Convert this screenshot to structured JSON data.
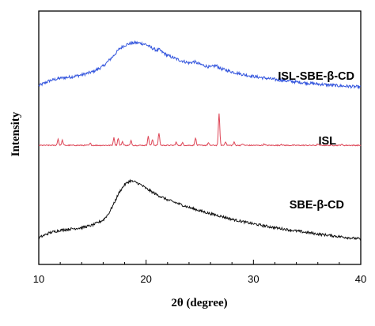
{
  "chart_data": {
    "type": "line",
    "title": "",
    "xlabel": "2θ (degree)",
    "ylabel": "Intensity",
    "xlim": [
      10,
      40
    ],
    "x_ticks": [
      "10",
      "20",
      "30",
      "40"
    ],
    "y_ticks": [],
    "grid": false,
    "legend": "inline labels at right of each trace",
    "series": [
      {
        "name": "ISL-SBE-β-CD",
        "color": "#3355dd",
        "x": [
          10,
          11,
          12,
          13,
          14,
          15,
          16,
          17,
          17.5,
          18,
          18.5,
          19,
          19.5,
          20,
          20.5,
          21,
          21.2,
          21.5,
          22,
          23,
          24,
          24.5,
          25,
          26,
          26.5,
          27,
          28,
          29,
          30,
          32,
          34,
          36,
          38,
          40
        ],
        "y": [
          0.705,
          0.725,
          0.735,
          0.74,
          0.748,
          0.76,
          0.782,
          0.825,
          0.85,
          0.865,
          0.872,
          0.875,
          0.873,
          0.868,
          0.855,
          0.845,
          0.848,
          0.838,
          0.825,
          0.808,
          0.795,
          0.8,
          0.79,
          0.778,
          0.785,
          0.772,
          0.76,
          0.75,
          0.742,
          0.73,
          0.72,
          0.712,
          0.705,
          0.7
        ]
      },
      {
        "name": "ISL",
        "color": "#dd4455",
        "baseline": 0.47,
        "peaks": [
          {
            "x": 11.8,
            "h": 0.025
          },
          {
            "x": 12.2,
            "h": 0.02
          },
          {
            "x": 14.8,
            "h": 0.008
          },
          {
            "x": 17.0,
            "h": 0.03
          },
          {
            "x": 17.4,
            "h": 0.028
          },
          {
            "x": 17.8,
            "h": 0.015
          },
          {
            "x": 18.6,
            "h": 0.018
          },
          {
            "x": 20.2,
            "h": 0.035
          },
          {
            "x": 20.6,
            "h": 0.022
          },
          {
            "x": 21.2,
            "h": 0.048
          },
          {
            "x": 22.8,
            "h": 0.012
          },
          {
            "x": 23.4,
            "h": 0.01
          },
          {
            "x": 24.6,
            "h": 0.03
          },
          {
            "x": 25.8,
            "h": 0.01
          },
          {
            "x": 26.8,
            "h": 0.125
          },
          {
            "x": 27.4,
            "h": 0.015
          },
          {
            "x": 28.2,
            "h": 0.012
          },
          {
            "x": 29.0,
            "h": 0.006
          },
          {
            "x": 31.0,
            "h": 0.006
          },
          {
            "x": 32.6,
            "h": 0.005
          },
          {
            "x": 36.0,
            "h": 0.005
          },
          {
            "x": 38.2,
            "h": 0.004
          }
        ]
      },
      {
        "name": "SBE-β-CD",
        "color": "#111111",
        "x": [
          10,
          11,
          12,
          13,
          14,
          15,
          16,
          16.5,
          17,
          17.5,
          18,
          18.5,
          19,
          19.5,
          20,
          21,
          22,
          23,
          24,
          25,
          26,
          27,
          28,
          30,
          32,
          34,
          36,
          38,
          40
        ],
        "y": [
          0.105,
          0.125,
          0.135,
          0.14,
          0.145,
          0.155,
          0.175,
          0.2,
          0.24,
          0.285,
          0.315,
          0.33,
          0.325,
          0.315,
          0.3,
          0.275,
          0.255,
          0.24,
          0.225,
          0.212,
          0.2,
          0.19,
          0.178,
          0.16,
          0.145,
          0.132,
          0.12,
          0.11,
          0.1
        ]
      }
    ]
  }
}
